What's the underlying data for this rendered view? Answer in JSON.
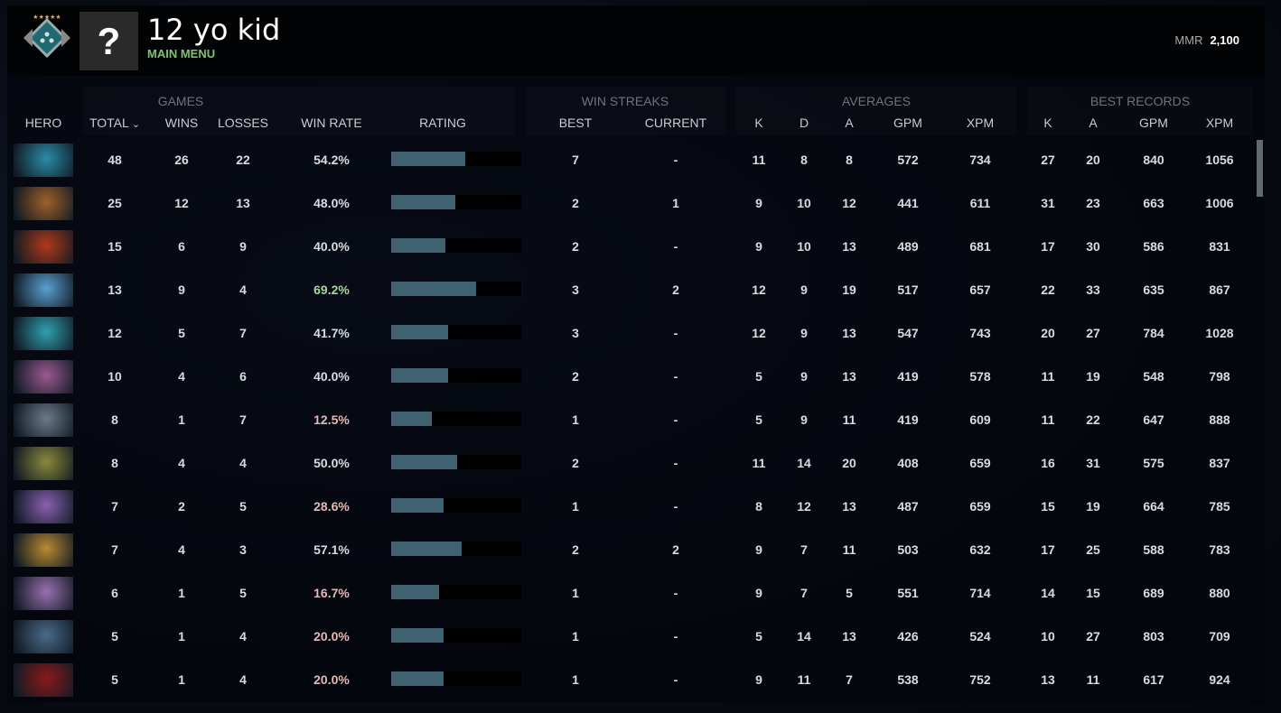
{
  "player": {
    "name": "12 yo kid",
    "status": "MAIN MENU",
    "avatar_placeholder": "?",
    "mmr_label": "MMR",
    "mmr_value": "2,100"
  },
  "groups": {
    "games": "GAMES",
    "win_streaks": "WIN STREAKS",
    "averages": "AVERAGES",
    "best_records": "BEST RECORDS"
  },
  "columns": [
    "HERO",
    "TOTAL",
    "WINS",
    "LOSSES",
    "WIN RATE",
    "RATING",
    "BEST",
    "CURRENT",
    "K",
    "D",
    "A",
    "GPM",
    "XPM",
    "K",
    "A",
    "GPM",
    "XPM"
  ],
  "sort": {
    "column": "TOTAL",
    "direction": "descending",
    "icon": "chevron-down-icon"
  },
  "colors": {
    "winrate_high": "#a6d89a",
    "winrate_low": "#e3b9b4",
    "winrate_mid": "#d9dcdf",
    "rating_fill": "#3f6170",
    "status": "#7ec36e"
  },
  "rows": [
    {
      "hero_color": "#2a8ca8",
      "total": "48",
      "wins": "26",
      "losses": "22",
      "winrate": "54.2%",
      "rating": 0.57,
      "best": "7",
      "current": "-",
      "k": "11",
      "d": "8",
      "a": "8",
      "gpm": "572",
      "xpm": "734",
      "bk": "27",
      "ba": "20",
      "bgpm": "840",
      "bxpm": "1056"
    },
    {
      "hero_color": "#a0602a",
      "total": "25",
      "wins": "12",
      "losses": "13",
      "winrate": "48.0%",
      "rating": 0.49,
      "best": "2",
      "current": "1",
      "k": "9",
      "d": "10",
      "a": "12",
      "gpm": "441",
      "xpm": "611",
      "bk": "31",
      "ba": "23",
      "bgpm": "663",
      "bxpm": "1006"
    },
    {
      "hero_color": "#b03a18",
      "total": "15",
      "wins": "6",
      "losses": "9",
      "winrate": "40.0%",
      "rating": 0.42,
      "best": "2",
      "current": "-",
      "k": "9",
      "d": "10",
      "a": "13",
      "gpm": "489",
      "xpm": "681",
      "bk": "17",
      "ba": "30",
      "bgpm": "586",
      "bxpm": "831"
    },
    {
      "hero_color": "#5aa0d0",
      "total": "13",
      "wins": "9",
      "losses": "4",
      "winrate": "69.2%",
      "rating": 0.65,
      "best": "3",
      "current": "2",
      "k": "12",
      "d": "9",
      "a": "19",
      "gpm": "517",
      "xpm": "657",
      "bk": "22",
      "ba": "33",
      "bgpm": "635",
      "bxpm": "867"
    },
    {
      "hero_color": "#2fa0b0",
      "total": "12",
      "wins": "5",
      "losses": "7",
      "winrate": "41.7%",
      "rating": 0.44,
      "best": "3",
      "current": "-",
      "k": "12",
      "d": "9",
      "a": "13",
      "gpm": "547",
      "xpm": "743",
      "bk": "20",
      "ba": "27",
      "bgpm": "784",
      "bxpm": "1028"
    },
    {
      "hero_color": "#9a5a90",
      "total": "10",
      "wins": "4",
      "losses": "6",
      "winrate": "40.0%",
      "rating": 0.44,
      "best": "2",
      "current": "-",
      "k": "5",
      "d": "9",
      "a": "13",
      "gpm": "419",
      "xpm": "578",
      "bk": "11",
      "ba": "19",
      "bgpm": "548",
      "bxpm": "798"
    },
    {
      "hero_color": "#6a7a8a",
      "total": "8",
      "wins": "1",
      "losses": "7",
      "winrate": "12.5%",
      "rating": 0.31,
      "best": "1",
      "current": "-",
      "k": "5",
      "d": "9",
      "a": "11",
      "gpm": "419",
      "xpm": "609",
      "bk": "11",
      "ba": "22",
      "bgpm": "647",
      "bxpm": "888"
    },
    {
      "hero_color": "#8a8a3a",
      "total": "8",
      "wins": "4",
      "losses": "4",
      "winrate": "50.0%",
      "rating": 0.51,
      "best": "2",
      "current": "-",
      "k": "11",
      "d": "14",
      "a": "20",
      "gpm": "408",
      "xpm": "659",
      "bk": "16",
      "ba": "31",
      "bgpm": "575",
      "bxpm": "837"
    },
    {
      "hero_color": "#8a60b0",
      "total": "7",
      "wins": "2",
      "losses": "5",
      "winrate": "28.6%",
      "rating": 0.4,
      "best": "1",
      "current": "-",
      "k": "8",
      "d": "12",
      "a": "13",
      "gpm": "487",
      "xpm": "659",
      "bk": "15",
      "ba": "19",
      "bgpm": "664",
      "bxpm": "785"
    },
    {
      "hero_color": "#b88a30",
      "total": "7",
      "wins": "4",
      "losses": "3",
      "winrate": "57.1%",
      "rating": 0.54,
      "best": "2",
      "current": "2",
      "k": "9",
      "d": "7",
      "a": "11",
      "gpm": "503",
      "xpm": "632",
      "bk": "17",
      "ba": "25",
      "bgpm": "588",
      "bxpm": "783"
    },
    {
      "hero_color": "#9a70b0",
      "total": "6",
      "wins": "1",
      "losses": "5",
      "winrate": "16.7%",
      "rating": 0.37,
      "best": "1",
      "current": "-",
      "k": "9",
      "d": "7",
      "a": "5",
      "gpm": "551",
      "xpm": "714",
      "bk": "14",
      "ba": "15",
      "bgpm": "689",
      "bxpm": "880"
    },
    {
      "hero_color": "#4a6a8a",
      "total": "5",
      "wins": "1",
      "losses": "4",
      "winrate": "20.0%",
      "rating": 0.4,
      "best": "1",
      "current": "-",
      "k": "5",
      "d": "14",
      "a": "13",
      "gpm": "426",
      "xpm": "524",
      "bk": "10",
      "ba": "27",
      "bgpm": "803",
      "bxpm": "709"
    },
    {
      "hero_color": "#8a1a1a",
      "total": "5",
      "wins": "1",
      "losses": "4",
      "winrate": "20.0%",
      "rating": 0.4,
      "best": "1",
      "current": "-",
      "k": "9",
      "d": "11",
      "a": "7",
      "gpm": "538",
      "xpm": "752",
      "bk": "13",
      "ba": "11",
      "bgpm": "617",
      "bxpm": "924"
    }
  ]
}
